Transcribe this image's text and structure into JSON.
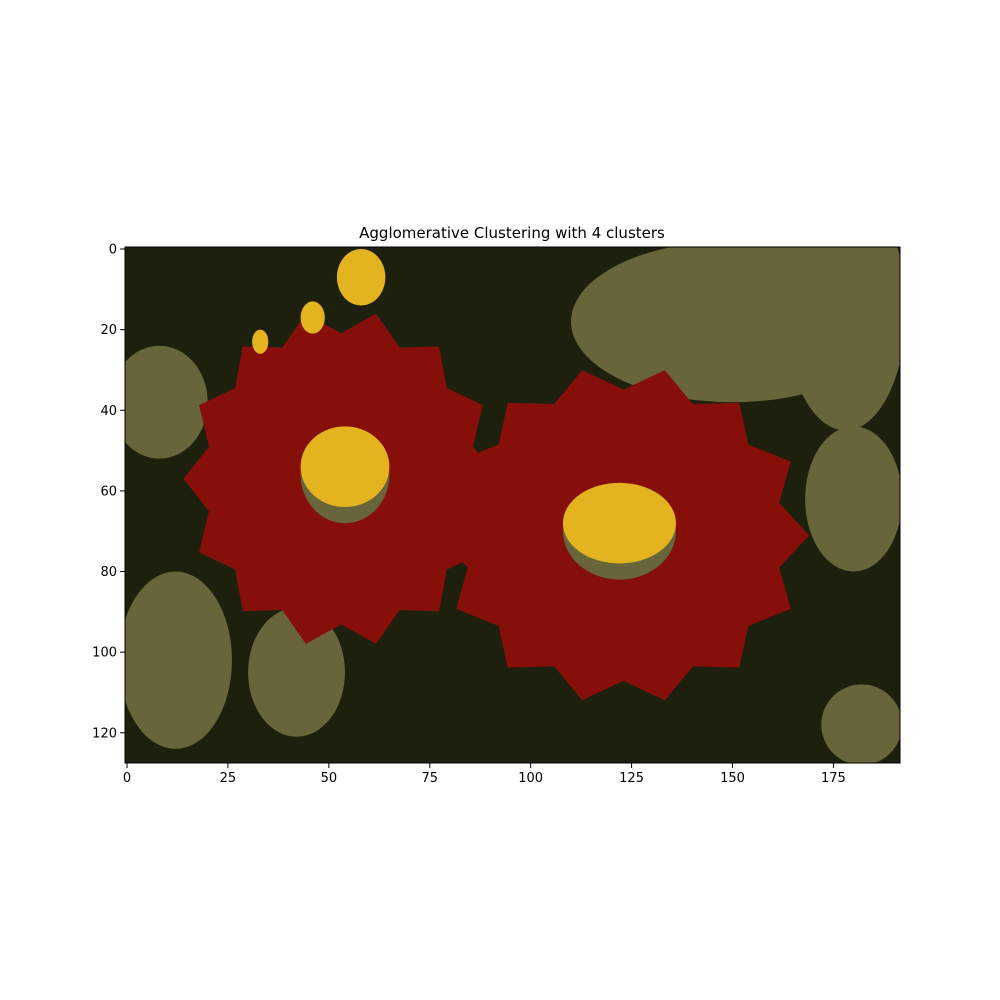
{
  "chart_data": {
    "type": "heatmap",
    "title": "Agglomerative Clustering with 4 clusters",
    "xlabel": "",
    "ylabel": "",
    "image_size": {
      "columns": 192,
      "rows": 128
    },
    "xlim": [
      -0.5,
      191.5
    ],
    "ylim": [
      127.5,
      -0.5
    ],
    "x_ticks": [
      0,
      25,
      50,
      75,
      100,
      125,
      150,
      175
    ],
    "y_ticks": [
      0,
      20,
      40,
      60,
      80,
      100,
      120
    ],
    "grid": false,
    "legend": "none",
    "cluster_colors": {
      "background_dark": "#1e200e",
      "olive": "#676539",
      "red_petals": "#870f09",
      "yellow_centers": "#e3b41f"
    },
    "regions": [
      {
        "cluster": "red_petals",
        "label": "left flower petals",
        "center": [
          53,
          57
        ],
        "radius_x": 39,
        "radius_y": 42
      },
      {
        "cluster": "red_petals",
        "label": "right flower petals",
        "center": [
          123,
          71
        ],
        "radius_x": 46,
        "radius_y": 42
      },
      {
        "cluster": "olive",
        "label": "left flower center ring",
        "center": [
          54,
          56
        ],
        "radius_x": 11,
        "radius_y": 12
      },
      {
        "cluster": "yellow_centers",
        "label": "left flower center",
        "center": [
          54,
          54
        ],
        "radius_x": 11,
        "radius_y": 10
      },
      {
        "cluster": "olive",
        "label": "right flower center ring",
        "center": [
          122,
          70
        ],
        "radius_x": 14,
        "radius_y": 12
      },
      {
        "cluster": "yellow_centers",
        "label": "right flower center",
        "center": [
          122,
          68
        ],
        "radius_x": 14,
        "radius_y": 10
      },
      {
        "cluster": "yellow_centers",
        "label": "bud top",
        "center": [
          58,
          7
        ],
        "radius_x": 6,
        "radius_y": 7
      },
      {
        "cluster": "yellow_centers",
        "label": "bud small",
        "center": [
          46,
          17
        ],
        "radius_x": 3,
        "radius_y": 4
      },
      {
        "cluster": "yellow_centers",
        "label": "bud tiny",
        "center": [
          33,
          23
        ],
        "radius_x": 2,
        "radius_y": 3
      },
      {
        "cluster": "olive",
        "label": "left leaf upper",
        "center": [
          8,
          38
        ],
        "radius_x": 12,
        "radius_y": 14
      },
      {
        "cluster": "olive",
        "label": "left leaf lower",
        "center": [
          12,
          102
        ],
        "radius_x": 14,
        "radius_y": 22
      },
      {
        "cluster": "olive",
        "label": "bottom leaf",
        "center": [
          42,
          105
        ],
        "radius_x": 12,
        "radius_y": 16
      },
      {
        "cluster": "olive",
        "label": "top-right foliage",
        "center": [
          150,
          18
        ],
        "radius_x": 40,
        "radius_y": 20
      },
      {
        "cluster": "olive",
        "label": "right foliage",
        "center": [
          178,
          15
        ],
        "radius_x": 15,
        "radius_y": 30
      },
      {
        "cluster": "olive",
        "label": "right mid foliage",
        "center": [
          180,
          62
        ],
        "radius_x": 12,
        "radius_y": 18
      },
      {
        "cluster": "olive",
        "label": "bottom-right foliage",
        "center": [
          182,
          118
        ],
        "radius_x": 10,
        "radius_y": 10
      }
    ]
  }
}
